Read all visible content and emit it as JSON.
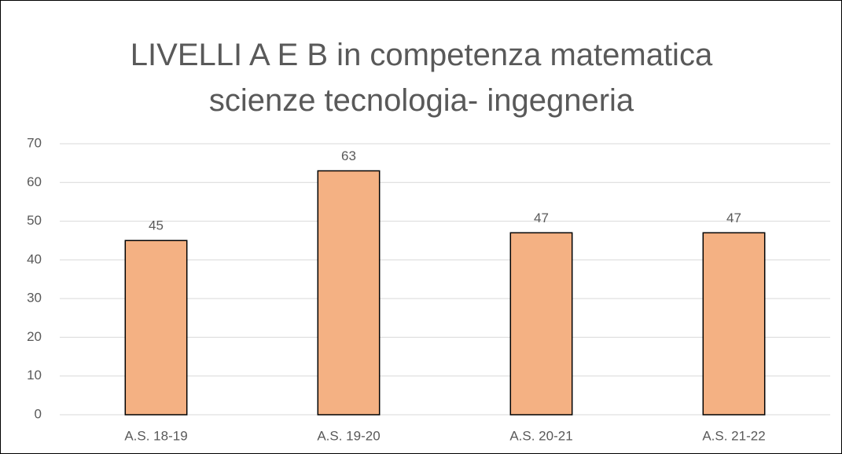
{
  "chart_data": {
    "type": "bar",
    "title": "LIVELLI A E B in competenza matematica scienze tecnologia- ingegneria",
    "categories": [
      "A.S. 18-19",
      "A.S. 19-20",
      "A.S. 20-21",
      "A.S. 21-22"
    ],
    "values": [
      45,
      63,
      47,
      47
    ],
    "color": "#f4b183",
    "ylim": [
      0,
      70
    ],
    "yticks": [
      0,
      10,
      20,
      30,
      40,
      50,
      60,
      70
    ],
    "grid": true
  }
}
